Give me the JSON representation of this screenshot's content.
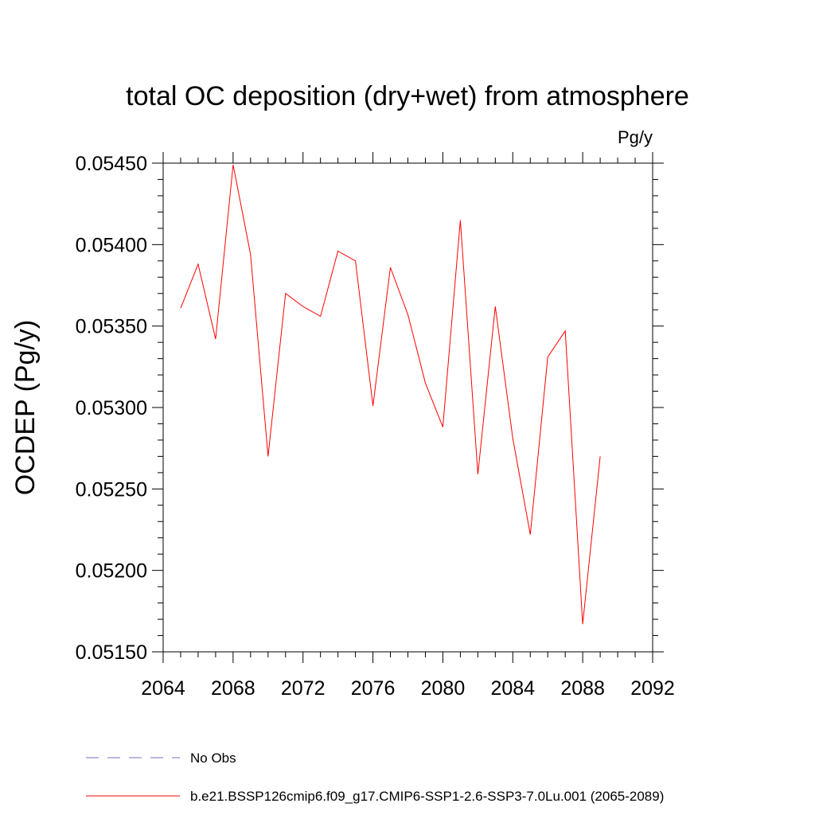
{
  "chart_data": {
    "type": "line",
    "title": "total OC deposition (dry+wet) from atmosphere",
    "units_label": "Pg/y",
    "ylabel": "OCDEP  (Pg/y)",
    "xlabel": "",
    "xlim": [
      2064,
      2092
    ],
    "ylim": [
      0.0515,
      0.0545
    ],
    "x_ticks": [
      "2064",
      "2068",
      "2072",
      "2076",
      "2080",
      "2084",
      "2088",
      "2092"
    ],
    "y_ticks": [
      "0.05150",
      "0.05200",
      "0.05250",
      "0.05300",
      "0.05350",
      "0.05400",
      "0.05450"
    ],
    "grid": false,
    "legend_placement": "bottom",
    "series": [
      {
        "name": "b.e21.BSSP126cmip6.f09_g17.CMIP6-SSP1-2.6-SSP3-7.0Lu.001 (2065-2089)",
        "color": "#ff0000",
        "style": "solid",
        "x": [
          2065,
          2066,
          2067,
          2068,
          2069,
          2070,
          2071,
          2072,
          2073,
          2074,
          2075,
          2076,
          2077,
          2078,
          2079,
          2080,
          2081,
          2082,
          2083,
          2084,
          2085,
          2086,
          2087,
          2088,
          2089
        ],
        "y": [
          0.05361,
          0.05388,
          0.05342,
          0.05449,
          0.05394,
          0.0527,
          0.0537,
          0.05362,
          0.05356,
          0.05396,
          0.0539,
          0.05301,
          0.05386,
          0.05357,
          0.05315,
          0.05288,
          0.05415,
          0.05259,
          0.05362,
          0.05281,
          0.05222,
          0.05331,
          0.05347,
          0.05167,
          0.0527
        ]
      }
    ],
    "legend": [
      {
        "label": "No Obs",
        "color": "#7a6fbf",
        "style": "dashed"
      },
      {
        "label": "b.e21.BSSP126cmip6.f09_g17.CMIP6-SSP1-2.6-SSP3-7.0Lu.001 (2065-2089)",
        "color": "#ff0000",
        "style": "solid"
      }
    ]
  }
}
